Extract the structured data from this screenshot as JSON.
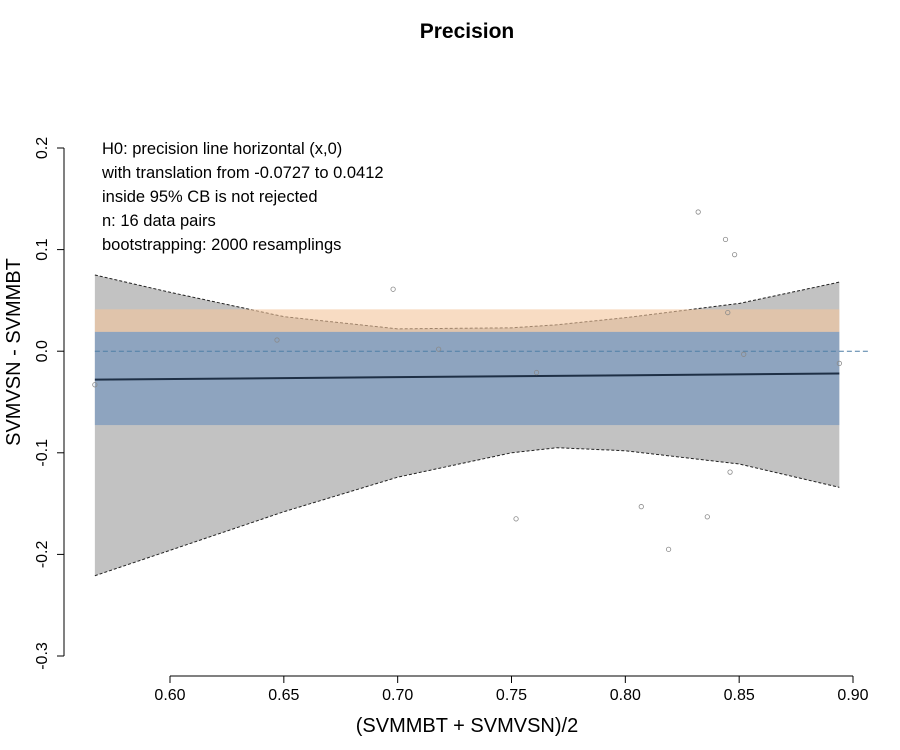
{
  "chart_data": {
    "type": "scatter",
    "title": "Precision",
    "xlabel": "(SVMMBT + SVMVSN)/2",
    "ylabel": "SVMVSN - SVMMBT",
    "xlim": [
      0.57,
      0.9
    ],
    "ylim": [
      -0.3,
      0.2
    ],
    "x_ticks": [
      "0.60",
      "0.65",
      "0.70",
      "0.75",
      "0.80",
      "0.85",
      "0.90"
    ],
    "y_ticks": [
      "-0.3",
      "-0.2",
      "-0.1",
      "0.0",
      "0.1",
      "0.2"
    ],
    "annotations": [
      "H0: precision line horizontal (x,0)",
      "with translation from -0.0727 to 0.0412",
      "inside 95% CB is not rejected",
      "n: 16 data pairs",
      "bootstrapping: 2000 resamplings"
    ],
    "points": [
      {
        "x": 0.567,
        "y": -0.033
      },
      {
        "x": 0.647,
        "y": 0.011
      },
      {
        "x": 0.698,
        "y": 0.061
      },
      {
        "x": 0.718,
        "y": 0.002
      },
      {
        "x": 0.752,
        "y": -0.165
      },
      {
        "x": 0.761,
        "y": -0.021
      },
      {
        "x": 0.807,
        "y": -0.153
      },
      {
        "x": 0.819,
        "y": -0.195
      },
      {
        "x": 0.832,
        "y": 0.137
      },
      {
        "x": 0.836,
        "y": -0.163
      },
      {
        "x": 0.844,
        "y": 0.11
      },
      {
        "x": 0.845,
        "y": 0.038
      },
      {
        "x": 0.846,
        "y": -0.119
      },
      {
        "x": 0.848,
        "y": 0.095
      },
      {
        "x": 0.852,
        "y": -0.003
      },
      {
        "x": 0.894,
        "y": -0.012
      }
    ],
    "regression_line": {
      "x": [
        0.567,
        0.894
      ],
      "y": [
        -0.028,
        -0.022
      ]
    },
    "confidence_band": {
      "x": [
        0.567,
        0.6,
        0.65,
        0.7,
        0.75,
        0.77,
        0.8,
        0.85,
        0.894
      ],
      "upper": [
        0.075,
        0.058,
        0.034,
        0.022,
        0.023,
        0.026,
        0.033,
        0.047,
        0.068
      ],
      "lower": [
        -0.221,
        -0.196,
        -0.158,
        -0.124,
        -0.1,
        -0.095,
        -0.098,
        -0.111,
        -0.134
      ]
    },
    "translation_band": {
      "lower": -0.0727,
      "upper": 0.0412,
      "inner_upper": 0.019
    },
    "reference_line_y": 0,
    "colors": {
      "confidence_band": "#c2c2c2",
      "translation_band_upper": "#f3c59b",
      "translation_band_main": "#6a8fbd",
      "regression_line": "#1e2f45",
      "reference_line": "#4f7ea6",
      "points": "#8a8a8a"
    },
    "grid": false,
    "legend": "none"
  }
}
